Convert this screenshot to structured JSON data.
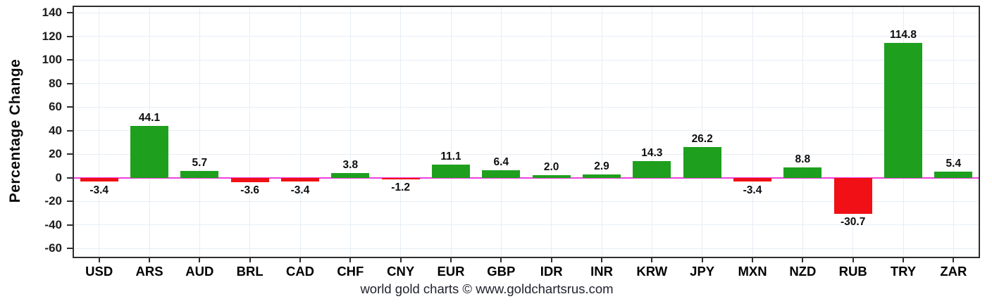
{
  "chart_data": {
    "type": "bar",
    "title": "",
    "xlabel": "",
    "ylabel": "Percentage Change",
    "categories": [
      "USD",
      "ARS",
      "AUD",
      "BRL",
      "CAD",
      "CHF",
      "CNY",
      "EUR",
      "GBP",
      "IDR",
      "INR",
      "KRW",
      "JPY",
      "MXN",
      "NZD",
      "RUB",
      "TRY",
      "ZAR"
    ],
    "values": [
      -3.4,
      44.1,
      5.7,
      -3.6,
      -3.4,
      3.8,
      -1.2,
      11.1,
      6.4,
      2.0,
      2.9,
      14.3,
      26.2,
      -3.4,
      8.8,
      -30.7,
      114.8,
      5.4
    ],
    "value_labels": [
      "-3.4",
      "44.1",
      "5.7",
      "-3.6",
      "-3.4",
      "3.8",
      "-1.2",
      "11.1",
      "6.4",
      "2.0",
      "2.9",
      "14.3",
      "26.2",
      "-3.4",
      "8.8",
      "-30.7",
      "114.8",
      "5.4"
    ],
    "y_ticks": [
      -60,
      -40,
      -20,
      0,
      20,
      40,
      60,
      80,
      100,
      120,
      140
    ],
    "ylim": [
      -67,
      145
    ],
    "grid": true,
    "legend": "none",
    "colors": {
      "positive_bar": "#1EA01E",
      "negative_bar": "#F01015",
      "zero_line": "#F040E0",
      "gridline": "#E7EEF5",
      "axis_border": "#2E2E2E",
      "label_text": "#0E0E0E"
    },
    "caption": "world gold charts © www.goldchartsrus.com"
  }
}
